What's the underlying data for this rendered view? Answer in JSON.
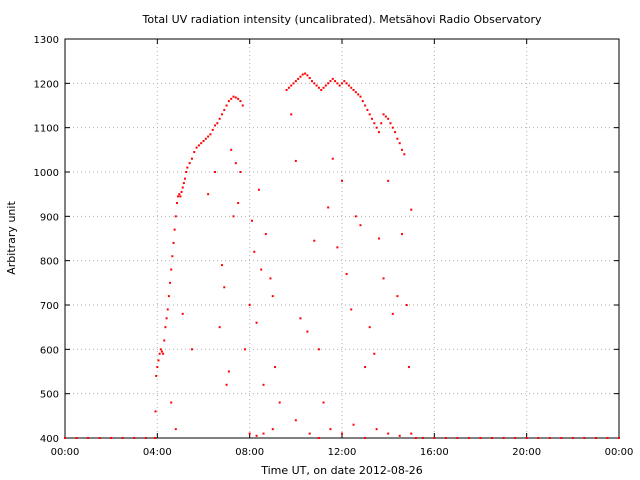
{
  "chart_data": {
    "type": "scatter",
    "title": "Total UV radiation intensity (uncalibrated). Metsähovi Radio Observatory",
    "xlabel": "Time UT, on date 2012-08-26",
    "ylabel": "Arbitrary unit",
    "x_unit": "hours",
    "xlim": [
      0,
      24
    ],
    "ylim": [
      400,
      1300
    ],
    "x_ticks": [
      {
        "value": 0,
        "label": "00:00"
      },
      {
        "value": 4,
        "label": "04:00"
      },
      {
        "value": 8,
        "label": "08:00"
      },
      {
        "value": 12,
        "label": "12:00"
      },
      {
        "value": 16,
        "label": "16:00"
      },
      {
        "value": 20,
        "label": "20:00"
      },
      {
        "value": 24,
        "label": "00:00"
      }
    ],
    "y_ticks": [
      {
        "value": 400,
        "label": "400"
      },
      {
        "value": 500,
        "label": "500"
      },
      {
        "value": 600,
        "label": "600"
      },
      {
        "value": 700,
        "label": "700"
      },
      {
        "value": 800,
        "label": "800"
      },
      {
        "value": 900,
        "label": "900"
      },
      {
        "value": 1000,
        "label": "1000"
      },
      {
        "value": 1100,
        "label": "1100"
      },
      {
        "value": 1200,
        "label": "1200"
      },
      {
        "value": 1300,
        "label": "1300"
      }
    ],
    "grid": true,
    "legend": "none",
    "series": [
      {
        "color": "#ff0000",
        "points": [
          [
            0.0,
            400
          ],
          [
            0.5,
            400
          ],
          [
            1.0,
            400
          ],
          [
            1.5,
            400
          ],
          [
            2.0,
            400
          ],
          [
            2.5,
            400
          ],
          [
            3.0,
            400
          ],
          [
            3.5,
            400
          ],
          [
            3.9,
            400
          ],
          [
            3.92,
            460
          ],
          [
            3.95,
            540
          ],
          [
            4.0,
            560
          ],
          [
            4.05,
            575
          ],
          [
            4.1,
            590
          ],
          [
            4.15,
            600
          ],
          [
            4.2,
            595
          ],
          [
            4.25,
            590
          ],
          [
            4.3,
            620
          ],
          [
            4.35,
            650
          ],
          [
            4.4,
            670
          ],
          [
            4.45,
            690
          ],
          [
            4.5,
            720
          ],
          [
            4.55,
            750
          ],
          [
            4.6,
            780
          ],
          [
            4.65,
            810
          ],
          [
            4.7,
            840
          ],
          [
            4.75,
            870
          ],
          [
            4.8,
            900
          ],
          [
            4.85,
            930
          ],
          [
            4.9,
            945
          ],
          [
            4.95,
            950
          ],
          [
            5.0,
            945
          ],
          [
            5.05,
            955
          ],
          [
            5.1,
            965
          ],
          [
            5.15,
            975
          ],
          [
            5.2,
            985
          ],
          [
            5.25,
            1000
          ],
          [
            5.3,
            1010
          ],
          [
            5.4,
            1020
          ],
          [
            5.5,
            1030
          ],
          [
            5.6,
            1045
          ],
          [
            5.7,
            1055
          ],
          [
            5.8,
            1060
          ],
          [
            5.9,
            1065
          ],
          [
            6.0,
            1070
          ],
          [
            6.1,
            1075
          ],
          [
            6.2,
            1080
          ],
          [
            6.3,
            1085
          ],
          [
            6.4,
            1095
          ],
          [
            6.5,
            1105
          ],
          [
            6.6,
            1110
          ],
          [
            6.7,
            1120
          ],
          [
            6.8,
            1130
          ],
          [
            6.9,
            1140
          ],
          [
            7.0,
            1150
          ],
          [
            7.1,
            1160
          ],
          [
            7.2,
            1165
          ],
          [
            7.3,
            1170
          ],
          [
            7.4,
            1168
          ],
          [
            7.5,
            1165
          ],
          [
            7.6,
            1160
          ],
          [
            7.7,
            1150
          ],
          [
            4.6,
            480
          ],
          [
            4.8,
            420
          ],
          [
            5.1,
            680
          ],
          [
            5.5,
            600
          ],
          [
            6.2,
            950
          ],
          [
            6.5,
            1000
          ],
          [
            6.7,
            650
          ],
          [
            6.8,
            790
          ],
          [
            6.9,
            740
          ],
          [
            7.0,
            520
          ],
          [
            7.1,
            550
          ],
          [
            7.2,
            1050
          ],
          [
            7.3,
            900
          ],
          [
            7.4,
            1020
          ],
          [
            7.5,
            930
          ],
          [
            7.6,
            1000
          ],
          [
            7.8,
            600
          ],
          [
            8.0,
            700
          ],
          [
            8.1,
            890
          ],
          [
            8.2,
            820
          ],
          [
            8.3,
            660
          ],
          [
            8.4,
            960
          ],
          [
            8.5,
            780
          ],
          [
            8.6,
            520
          ],
          [
            8.7,
            860
          ],
          [
            8.9,
            760
          ],
          [
            9.0,
            720
          ],
          [
            9.1,
            560
          ],
          [
            9.3,
            480
          ],
          [
            8.0,
            410
          ],
          [
            8.3,
            405
          ],
          [
            8.6,
            410
          ],
          [
            9.0,
            420
          ],
          [
            9.6,
            1185
          ],
          [
            9.7,
            1190
          ],
          [
            9.8,
            1195
          ],
          [
            9.9,
            1200
          ],
          [
            10.0,
            1205
          ],
          [
            10.1,
            1210
          ],
          [
            10.2,
            1215
          ],
          [
            10.3,
            1220
          ],
          [
            10.4,
            1222
          ],
          [
            10.5,
            1218
          ],
          [
            10.6,
            1212
          ],
          [
            10.7,
            1205
          ],
          [
            10.8,
            1200
          ],
          [
            10.9,
            1195
          ],
          [
            11.0,
            1190
          ],
          [
            11.1,
            1185
          ],
          [
            11.2,
            1190
          ],
          [
            11.3,
            1195
          ],
          [
            11.4,
            1200
          ],
          [
            11.5,
            1205
          ],
          [
            11.6,
            1210
          ],
          [
            11.7,
            1205
          ],
          [
            11.8,
            1200
          ],
          [
            11.9,
            1195
          ],
          [
            12.0,
            1200
          ],
          [
            12.1,
            1205
          ],
          [
            12.2,
            1200
          ],
          [
            12.3,
            1195
          ],
          [
            12.4,
            1190
          ],
          [
            12.5,
            1185
          ],
          [
            12.6,
            1180
          ],
          [
            12.7,
            1175
          ],
          [
            12.8,
            1170
          ],
          [
            12.9,
            1160
          ],
          [
            13.0,
            1150
          ],
          [
            13.1,
            1140
          ],
          [
            13.2,
            1130
          ],
          [
            13.3,
            1120
          ],
          [
            13.4,
            1110
          ],
          [
            13.5,
            1100
          ],
          [
            13.6,
            1090
          ],
          [
            13.7,
            1110
          ],
          [
            13.8,
            1130
          ],
          [
            13.9,
            1125
          ],
          [
            14.0,
            1120
          ],
          [
            14.1,
            1110
          ],
          [
            14.2,
            1100
          ],
          [
            14.3,
            1090
          ],
          [
            14.4,
            1075
          ],
          [
            14.5,
            1065
          ],
          [
            14.6,
            1050
          ],
          [
            14.7,
            1040
          ],
          [
            9.8,
            1130
          ],
          [
            10.0,
            1025
          ],
          [
            10.2,
            670
          ],
          [
            10.5,
            640
          ],
          [
            10.8,
            845
          ],
          [
            11.0,
            600
          ],
          [
            11.2,
            480
          ],
          [
            11.4,
            920
          ],
          [
            11.6,
            1030
          ],
          [
            11.8,
            830
          ],
          [
            12.0,
            980
          ],
          [
            12.2,
            770
          ],
          [
            12.4,
            690
          ],
          [
            12.6,
            900
          ],
          [
            12.8,
            880
          ],
          [
            13.0,
            560
          ],
          [
            13.2,
            650
          ],
          [
            13.4,
            590
          ],
          [
            13.6,
            850
          ],
          [
            13.8,
            760
          ],
          [
            14.0,
            980
          ],
          [
            14.2,
            680
          ],
          [
            14.4,
            720
          ],
          [
            14.6,
            860
          ],
          [
            14.8,
            700
          ],
          [
            14.9,
            560
          ],
          [
            15.0,
            915
          ],
          [
            10.0,
            440
          ],
          [
            10.6,
            410
          ],
          [
            11.0,
            400
          ],
          [
            11.5,
            420
          ],
          [
            12.0,
            410
          ],
          [
            12.5,
            430
          ],
          [
            13.0,
            400
          ],
          [
            13.5,
            420
          ],
          [
            14.0,
            410
          ],
          [
            14.5,
            405
          ],
          [
            15.0,
            410
          ],
          [
            15.2,
            400
          ],
          [
            15.5,
            400
          ],
          [
            16.0,
            400
          ],
          [
            16.5,
            400
          ],
          [
            17.0,
            400
          ],
          [
            17.5,
            400
          ],
          [
            18.0,
            400
          ],
          [
            18.5,
            400
          ],
          [
            19.0,
            400
          ],
          [
            19.5,
            400
          ],
          [
            20.0,
            400
          ],
          [
            20.5,
            400
          ],
          [
            21.0,
            400
          ],
          [
            21.5,
            400
          ],
          [
            22.0,
            400
          ],
          [
            22.5,
            400
          ],
          [
            23.0,
            400
          ],
          [
            23.5,
            400
          ],
          [
            24.0,
            400
          ]
        ]
      }
    ]
  }
}
